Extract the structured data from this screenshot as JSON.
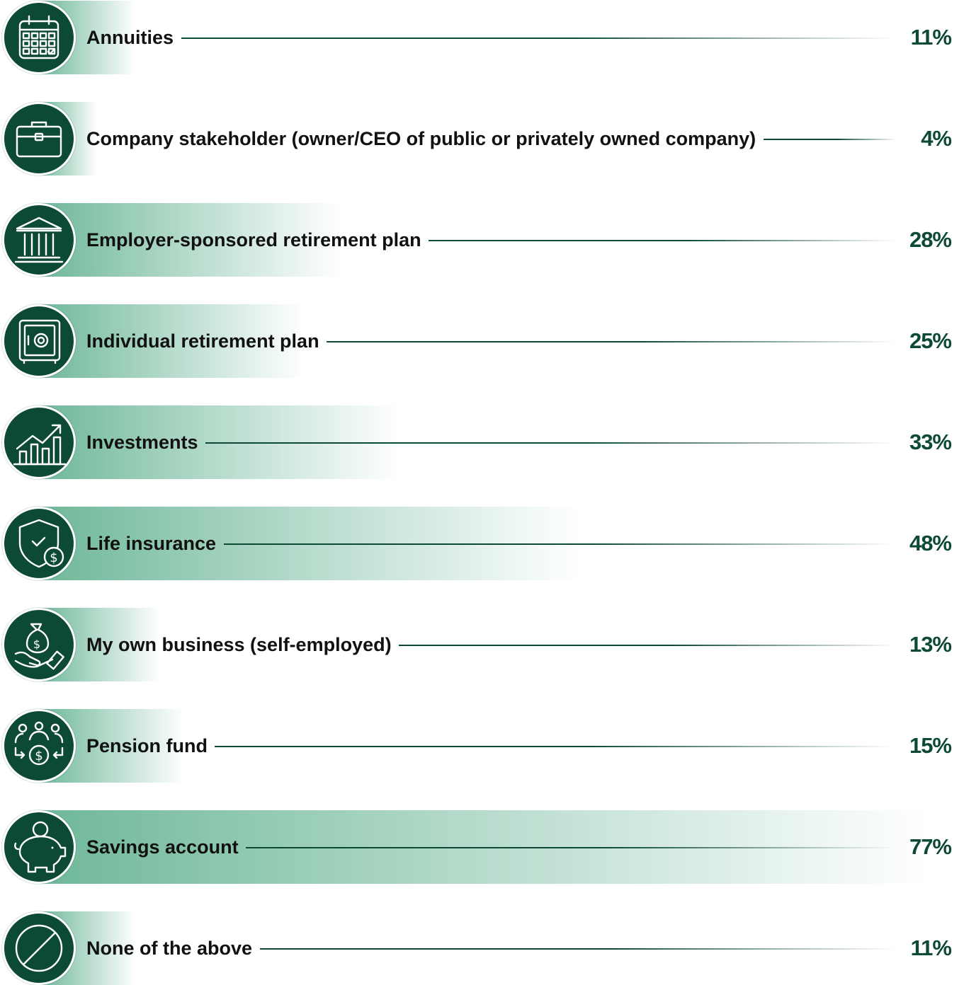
{
  "colors": {
    "accent": "#0d4a36",
    "bar_start": "#6fb89a",
    "bar_end": "#ffffff",
    "text": "#111111"
  },
  "chart_data": {
    "type": "bar",
    "orientation": "horizontal",
    "categories": [
      "Annuities",
      "Company stakeholder (owner/CEO of public or privately owned company)",
      "Employer-sponsored retirement plan",
      "Individual retirement plan",
      "Investments",
      "Life insurance",
      "My own business (self-employed)",
      "Pension fund",
      "Savings account",
      "None of the above"
    ],
    "values": [
      11,
      4,
      28,
      25,
      33,
      48,
      13,
      15,
      77,
      11
    ],
    "value_labels": [
      "11%",
      "4%",
      "28%",
      "25%",
      "33%",
      "48%",
      "13%",
      "15%",
      "77%",
      "11%"
    ],
    "icons": [
      "calendar-icon",
      "briefcase-icon",
      "bank-building-icon",
      "safe-icon",
      "growth-chart-icon",
      "shield-money-icon",
      "hand-money-bag-icon",
      "people-money-icon",
      "piggy-bank-icon",
      "prohibited-icon"
    ],
    "unit": "%",
    "xlim": [
      0,
      77
    ],
    "grid": false,
    "legend": "none"
  }
}
